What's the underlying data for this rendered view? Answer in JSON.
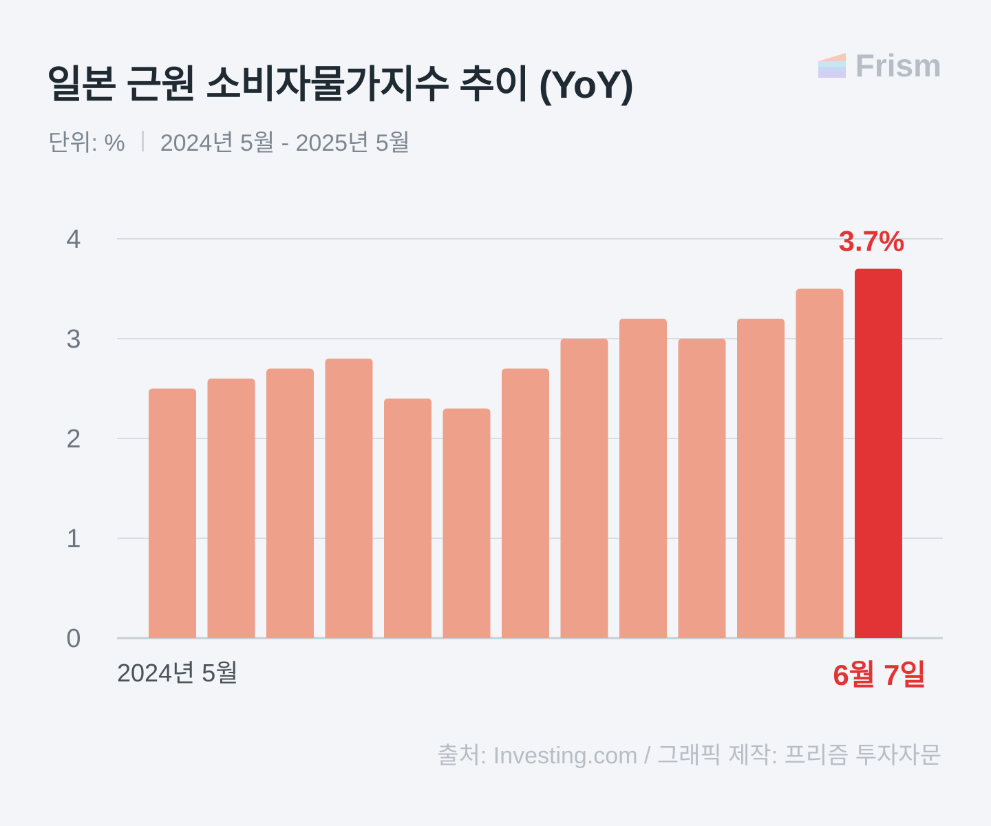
{
  "header": {
    "title": "일본 근원 소비자물가지수 추이 (YoY)",
    "unit": "단위: %",
    "period": "2024년 5월 - 2025년 5월",
    "brand": "Frism"
  },
  "footer": {
    "source": "출처: Investing.com / 그래픽 제작: 프리즘 투자자문"
  },
  "colors": {
    "bar": "#efa08a",
    "highlight": "#e33435",
    "grid": "#d8dce3",
    "axis_text": "#6d7680"
  },
  "chart_data": {
    "type": "bar",
    "categories": [
      "2024년 5월",
      "",
      "",
      "",
      "",
      "",
      "",
      "",
      "",
      "",
      "",
      "",
      ""
    ],
    "values": [
      2.5,
      2.6,
      2.7,
      2.8,
      2.4,
      2.3,
      2.7,
      3.0,
      3.2,
      3.0,
      3.2,
      3.5,
      3.7
    ],
    "highlight_index": 12,
    "highlight_value_label": "3.7%",
    "highlight_category_label": "6월 7일",
    "first_category_label": "2024년 5월",
    "y_ticks": [
      "0",
      "1",
      "2",
      "3",
      "4"
    ],
    "ylim": [
      0,
      4
    ],
    "grid": true,
    "title": "일본 근원 소비자물가지수 추이 (YoY)",
    "xlabel": "",
    "ylabel": ""
  }
}
